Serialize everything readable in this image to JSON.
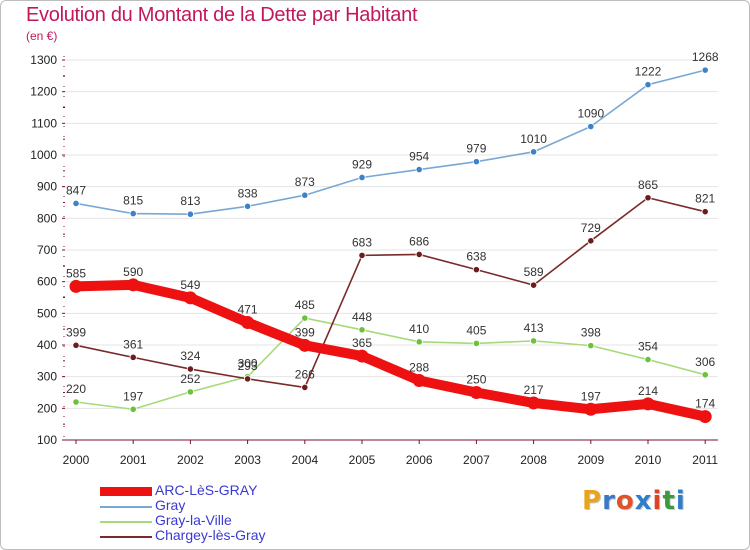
{
  "header": {
    "title": "Evolution du Montant de la Dette par Habitant",
    "subtitle": "(en €)"
  },
  "colors": {
    "title": "#c2185b",
    "grid": "#e5e5e5",
    "axis": "#7a0e3b",
    "legend_text": "#3a3ad0"
  },
  "logo": {
    "text": "Proxiti",
    "colors": [
      "#e8a51b",
      "#3a78c8",
      "#e0522a",
      "#2f7ec9",
      "#d94526",
      "#3b9a3b",
      "#2f7ec9"
    ]
  },
  "chart_data": {
    "type": "line",
    "title": "Evolution du Montant de la Dette par Habitant",
    "subtitle": "(en €)",
    "xlabel": "",
    "ylabel": "",
    "x": [
      "2000",
      "2001",
      "2002",
      "2003",
      "2004",
      "2005",
      "2006",
      "2007",
      "2008",
      "2009",
      "2010",
      "2011"
    ],
    "ylim": [
      100,
      1300
    ],
    "yticks": [
      100,
      200,
      300,
      400,
      500,
      600,
      700,
      800,
      900,
      1000,
      1100,
      1200,
      1300
    ],
    "grid": true,
    "legend_position": "bottom-left",
    "series": [
      {
        "name": "ARC-LèS-GRAY",
        "color": "#ee1111",
        "marker_color": "#ee1111",
        "label_color": "#333333",
        "thick": true,
        "values": [
          585,
          590,
          549,
          471,
          399,
          365,
          288,
          250,
          217,
          197,
          214,
          174
        ],
        "labels": [
          "585",
          "590",
          "549",
          "471",
          "399",
          "365",
          "288",
          "250",
          "217",
          "197",
          "214",
          "174"
        ]
      },
      {
        "name": "Gray",
        "color": "#79a8d4",
        "marker_color": "#3d82c6",
        "label_color": "#333333",
        "thick": false,
        "values": [
          847,
          815,
          813,
          838,
          873,
          929,
          954,
          979,
          1010,
          1090,
          1222,
          1268
        ],
        "labels": [
          "847",
          "815",
          "813",
          "838",
          "873",
          "929",
          "954",
          "979",
          "1010",
          "1090",
          "1222",
          "1268"
        ]
      },
      {
        "name": "Gray-la-Ville",
        "color": "#a7d97a",
        "marker_color": "#6cc13c",
        "label_color": "#333333",
        "thick": false,
        "values": [
          220,
          197,
          252,
          300,
          485,
          448,
          410,
          405,
          413,
          398,
          354,
          306
        ],
        "labels": [
          "220",
          "197",
          "252",
          "300",
          "485",
          "448",
          "410",
          "405",
          "413",
          "398",
          "354",
          "306"
        ]
      },
      {
        "name": "Chargey-lès-Gray",
        "color": "#7a2a2a",
        "marker_color": "#6b1d1d",
        "label_color": "#333333",
        "thick": false,
        "values": [
          399,
          361,
          324,
          293,
          266,
          683,
          686,
          638,
          589,
          729,
          865,
          821
        ],
        "labels": [
          "399",
          "361",
          "324",
          "293",
          "266",
          "683",
          "686",
          "638",
          "589",
          "729",
          "865",
          "821"
        ]
      }
    ]
  }
}
